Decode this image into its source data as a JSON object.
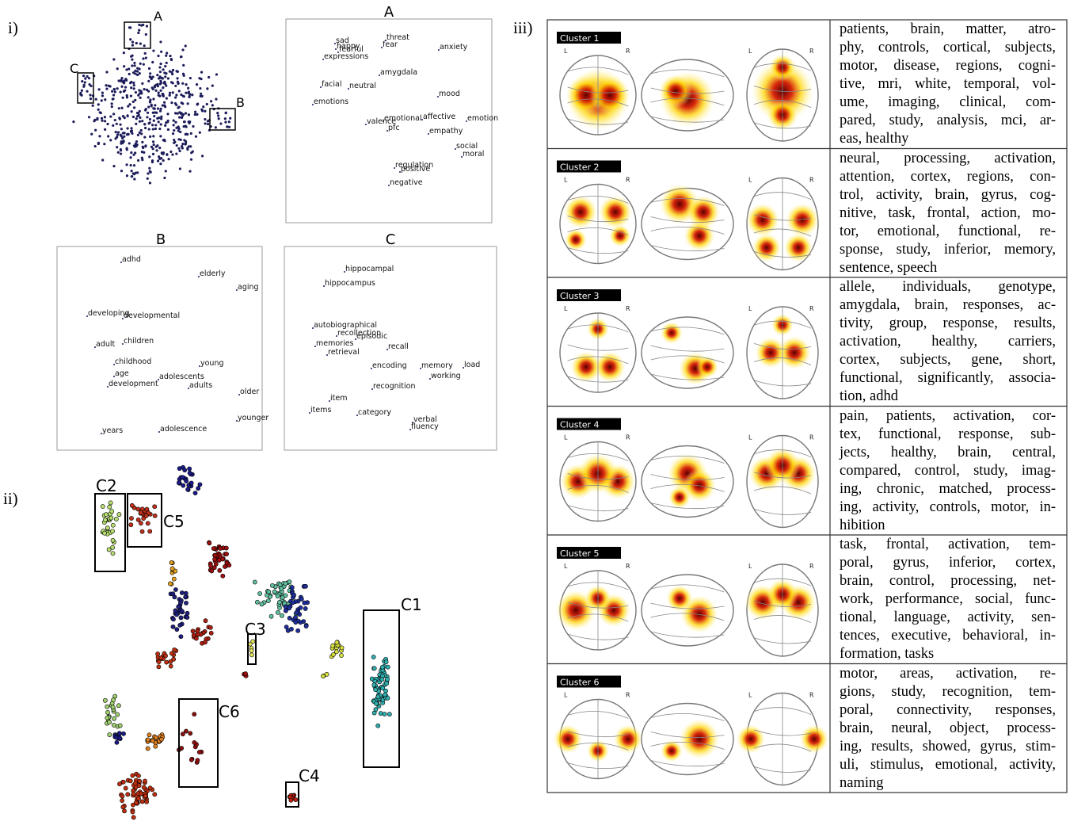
{
  "panels": {
    "i": "i)",
    "ii": "ii)",
    "iii": "iii)"
  },
  "overview": {
    "boxes": [
      "A",
      "B",
      "C"
    ]
  },
  "zooms": [
    {
      "title": "A",
      "words": [
        "sad",
        "happy",
        "fearful",
        "threat",
        "fear",
        "anxiety",
        "expressions",
        "amygdala",
        "facial",
        "neutral",
        "mood",
        "emotions",
        "emotional",
        "affective",
        "emotion",
        "valence",
        "pfc",
        "empathy",
        "social",
        "moral",
        "regulation",
        "positive",
        "negative"
      ]
    },
    {
      "title": "B",
      "words": [
        "adhd",
        "elderly",
        "aging",
        "developing",
        "developmental",
        "adult",
        "children",
        "childhood",
        "young",
        "age",
        "adolescents",
        "development",
        "adults",
        "older",
        "younger",
        "years",
        "adolescence"
      ]
    },
    {
      "title": "C",
      "words": [
        "hippocampal",
        "hippocampus",
        "autobiographical",
        "recollection",
        "episodic",
        "memories",
        "recall",
        "retrieval",
        "encoding",
        "memory",
        "load",
        "working",
        "recognition",
        "item",
        "items",
        "category",
        "verbal",
        "fluency"
      ]
    }
  ],
  "clusters_plot": {
    "boxes": [
      "C1",
      "C2",
      "C3",
      "C4",
      "C5",
      "C6"
    ]
  },
  "table": {
    "rows": [
      {
        "label": "Cluster 1",
        "orientation": [
          "L",
          "R",
          "L",
          "R"
        ],
        "lines": [
          "patients, brain, matter, atro-",
          "phy, controls, cortical, subjects,",
          "motor, disease, regions, cogni-",
          "tive, mri, white, temporal, vol-",
          "ume, imaging, clinical, com-",
          "pared, study, analysis, mci, ar-",
          "eas, healthy"
        ]
      },
      {
        "label": "Cluster 2",
        "orientation": [
          "L",
          "R",
          "L",
          "R"
        ],
        "lines": [
          "neural, processing, activation,",
          "attention, cortex, regions, con-",
          "trol, activity, brain, gyrus, cog-",
          "nitive, task, frontal, action, mo-",
          "tor, emotional, functional, re-",
          "sponse, study, inferior, memory,",
          "sentence, speech"
        ]
      },
      {
        "label": "Cluster 3",
        "orientation": [
          "L",
          "R",
          "L",
          "R"
        ],
        "lines": [
          "allele, individuals, genotype,",
          "amygdala, brain, responses, ac-",
          "tivity, group, response, results,",
          "activation, healthy, carriers,",
          "cortex, subjects, gene, short,",
          "functional, significantly, associa-",
          "tion, adhd"
        ]
      },
      {
        "label": "Cluster 4",
        "orientation": [
          "L",
          "R",
          "L",
          "R"
        ],
        "lines": [
          "pain, patients, activation, cor-",
          "tex, functional, response, sub-",
          "jects, healthy, brain, central,",
          "compared, control, study, imag-",
          "ing, chronic, matched, process-",
          "ing, activity, controls, motor, in-",
          "hibition"
        ]
      },
      {
        "label": "Cluster 5",
        "orientation": [
          "L",
          "R",
          "L",
          "R"
        ],
        "lines": [
          "task, frontal, activation, tem-",
          "poral, gyrus, inferior, cortex,",
          "brain, control, processing, net-",
          "work, performance, social, func-",
          "tional, language, activity, sen-",
          "tences, executive, behavioral, in-",
          "formation, tasks"
        ]
      },
      {
        "label": "Cluster 6",
        "orientation": [
          "L",
          "R",
          "L",
          "R"
        ],
        "lines": [
          "motor, areas, activation, re-",
          "gions, study, recognition, tem-",
          "poral, connectivity, responses,",
          "brain, neural, object, process-",
          "ing, results, showed, gyrus, stim-",
          "uli, stimulus, emotional, activity,",
          "naming"
        ]
      }
    ]
  }
}
